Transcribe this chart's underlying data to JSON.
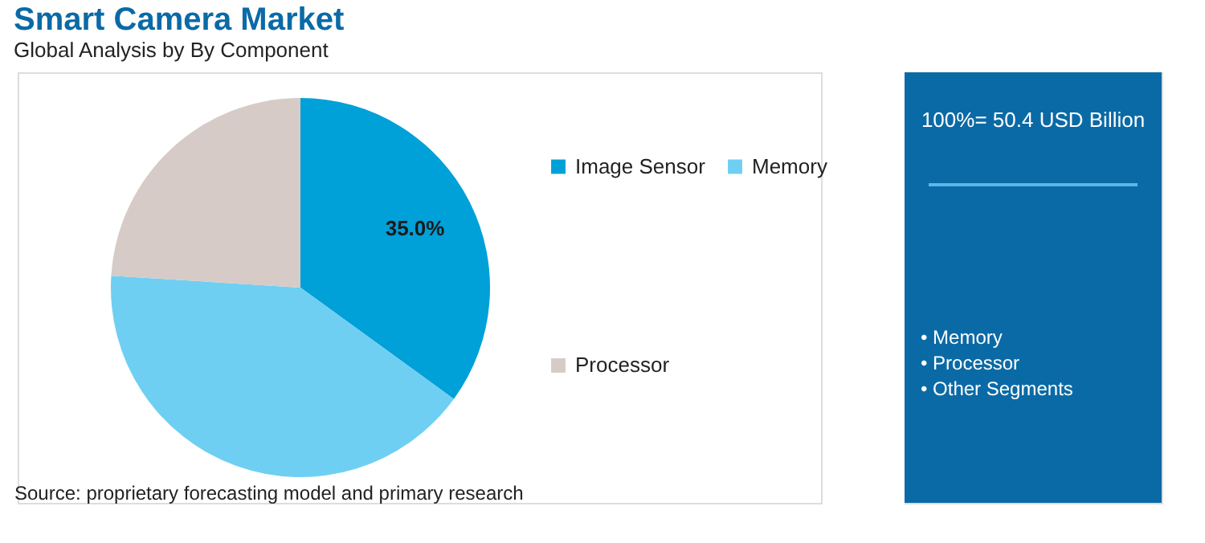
{
  "chart_data": [
    {
      "type": "pie",
      "title": "Smart Camera Market",
      "subtitle": "Global Analysis by By Component",
      "categories": [
        "Image Sensor",
        "Memory",
        "Processor"
      ],
      "values": [
        35,
        41,
        24
      ],
      "colors": [
        "#00a0d8",
        "#6ecff2",
        "#d6cbc6"
      ],
      "value_labels": [
        "35.0%",
        null,
        null
      ],
      "legend": "right",
      "annotations": [
        "Source: proprietary forecasting model and primary research"
      ]
    },
    {
      "type": "other",
      "annotations": [
        "100%= 50.4 USD Billion",
        "• Memory",
        "• Processor",
        "• Other Segments"
      ]
    }
  ]
}
